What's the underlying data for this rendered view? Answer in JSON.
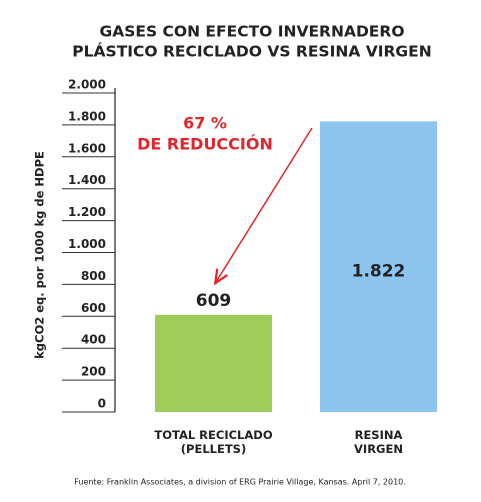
{
  "chart_data": {
    "type": "bar",
    "title": [
      "GASES CON EFECTO INVERNADERO",
      "PLÁSTICO RECICLADO VS RESINA VIRGEN"
    ],
    "y_label": "kgCO2 eq. por 1000 kg de HDPE",
    "categories": [
      "TOTAL RECICLADO\n(PELLETS)",
      "RESINA\nVIRGEN"
    ],
    "values": [
      609,
      1822
    ],
    "value_labels": [
      "609",
      "1.822"
    ],
    "colors": [
      "#9fcd5c",
      "#8ec5ef"
    ],
    "ylim": [
      0,
      2000
    ],
    "yticks": [
      0,
      200,
      400,
      600,
      800,
      {
        "value": 1000,
        "label": "1.000"
      },
      {
        "value": 1200,
        "label": "1.200"
      },
      {
        "value": 1400,
        "label": "1.400"
      },
      {
        "value": 1600,
        "label": "1.600"
      },
      {
        "value": 1800,
        "label": "1.800"
      },
      {
        "value": 2000,
        "label": "2.000"
      }
    ],
    "annotations": [
      "67 %",
      "DE REDUCCIÓN"
    ],
    "source": "Fuente: Franklin Associates, a division of ERG Prairie Village, Kansas. April 7, 2010."
  }
}
